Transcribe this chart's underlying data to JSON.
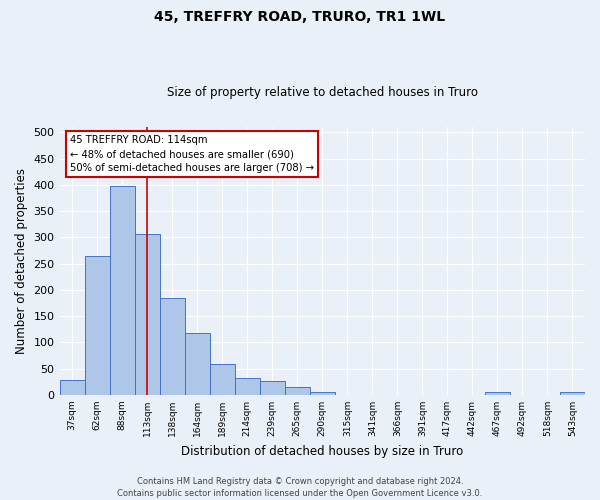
{
  "title": "45, TREFFRY ROAD, TRURO, TR1 1WL",
  "subtitle": "Size of property relative to detached houses in Truro",
  "xlabel": "Distribution of detached houses by size in Truro",
  "ylabel": "Number of detached properties",
  "categories": [
    "37sqm",
    "62sqm",
    "88sqm",
    "113sqm",
    "138sqm",
    "164sqm",
    "189sqm",
    "214sqm",
    "239sqm",
    "265sqm",
    "290sqm",
    "315sqm",
    "341sqm",
    "366sqm",
    "391sqm",
    "417sqm",
    "442sqm",
    "467sqm",
    "492sqm",
    "518sqm",
    "543sqm"
  ],
  "values": [
    29,
    264,
    398,
    307,
    184,
    118,
    59,
    33,
    26,
    15,
    6,
    0,
    0,
    0,
    0,
    0,
    0,
    5,
    0,
    0,
    5
  ],
  "bar_color": "#aec6e8",
  "bar_edge_color": "#4472c4",
  "bg_color": "#eaf0f8",
  "grid_color": "#ffffff",
  "vline_x": 3,
  "vline_color": "#cc0000",
  "annotation_line1": "45 TREFFRY ROAD: 114sqm",
  "annotation_line2": "← 48% of detached houses are smaller (690)",
  "annotation_line3": "50% of semi-detached houses are larger (708) →",
  "annotation_box_color": "#ffffff",
  "annotation_box_edge": "#cc0000",
  "footer": "Contains HM Land Registry data © Crown copyright and database right 2024.\nContains public sector information licensed under the Open Government Licence v3.0.",
  "ylim": [
    0,
    510
  ],
  "yticks": [
    0,
    50,
    100,
    150,
    200,
    250,
    300,
    350,
    400,
    450,
    500
  ]
}
